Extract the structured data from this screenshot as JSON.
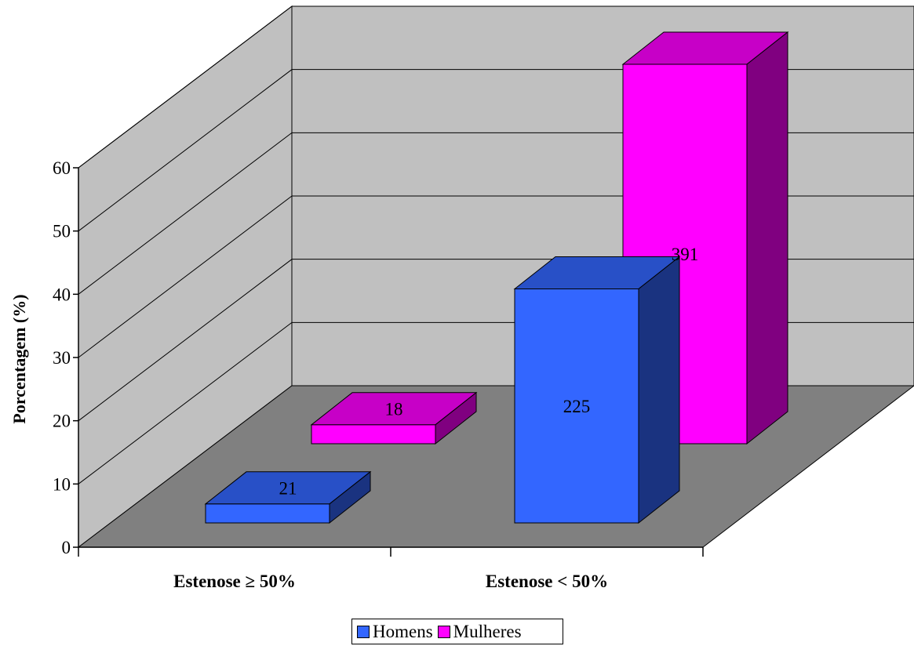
{
  "chart_data": {
    "type": "bar",
    "style": "3d-clustered",
    "categories": [
      "Estenose ≥ 50%",
      "Estenose < 50%"
    ],
    "series": [
      {
        "name": "Homens",
        "values": [
          3,
          37
        ],
        "labels": [
          "21",
          "225"
        ],
        "color": "#3366FF"
      },
      {
        "name": "Mulheres",
        "values": [
          3,
          60
        ],
        "labels": [
          "18",
          "391"
        ],
        "color": "#FF00FF"
      }
    ],
    "ylabel": "Porcentagem (%)",
    "ylim": [
      0,
      60
    ],
    "yticks": [
      0,
      10,
      20,
      30,
      40,
      50,
      60
    ],
    "grid": true,
    "legend": "bottom",
    "colors": {
      "walls": "#C0C0C0",
      "floor": "#808080"
    }
  }
}
